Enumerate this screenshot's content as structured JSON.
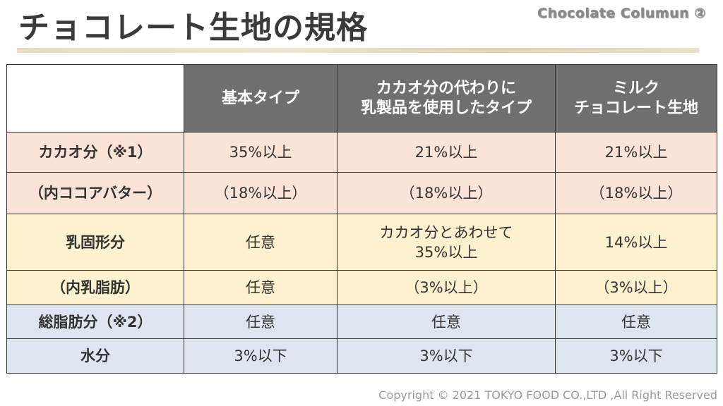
{
  "header": {
    "title": "チョコレート生地の規格",
    "series_label": "Chocolate Columun ②"
  },
  "table": {
    "columns": [
      "",
      "基本タイプ",
      "カカオ分の代わりに\n乳製品を使用したタイプ",
      "ミルク\nチョコレート生地"
    ],
    "rows": [
      {
        "label": "カカオ分（※1）",
        "cells": [
          "35%以上",
          "21%以上",
          "21%以上"
        ],
        "color": "#fbe3d8"
      },
      {
        "label": "（内ココアバター）",
        "cells": [
          "（18%以上）",
          "（18%以上）",
          "（18%以上）"
        ],
        "color": "#fbe3d8"
      },
      {
        "label": "乳固形分",
        "cells": [
          "任意",
          "カカオ分とあわせて\n35%以上",
          "14%以上"
        ],
        "color": "#fdf1cf"
      },
      {
        "label": "（内乳脂肪）",
        "cells": [
          "任意",
          "（3%以上）",
          "（3%以上）"
        ],
        "color": "#fdf1cf"
      },
      {
        "label": "総脂肪分（※2）",
        "cells": [
          "任意",
          "任意",
          "任意"
        ],
        "color": "#dde5f1"
      },
      {
        "label": "水分",
        "cells": [
          "3%以下",
          "3%以下",
          "3%以下"
        ],
        "color": "#dde5f1"
      }
    ]
  },
  "footer": {
    "copyright": "Copyright © 2021 TOKYO FOOD CO.,LTD ,All Right Reserved"
  }
}
